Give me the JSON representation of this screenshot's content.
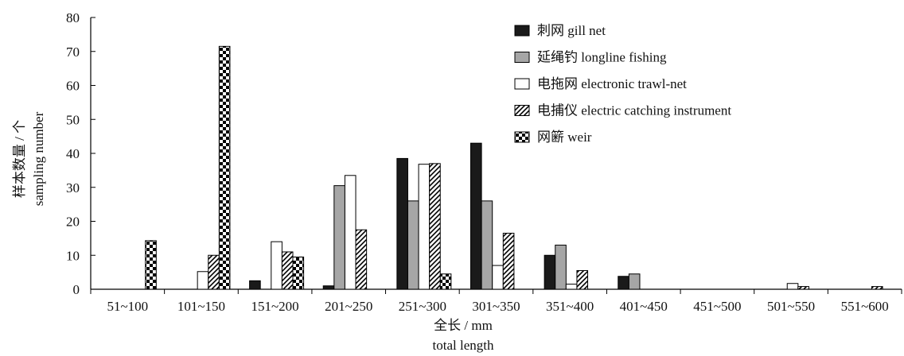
{
  "chart_data": {
    "type": "bar",
    "categories": [
      "51~100",
      "101~150",
      "151~200",
      "201~250",
      "251~300",
      "301~350",
      "351~400",
      "401~450",
      "451~500",
      "501~550",
      "551~600"
    ],
    "series": [
      {
        "name": "刺网 gill net",
        "pattern": "solid-black",
        "values": [
          0,
          0,
          2.5,
          1,
          38.5,
          43,
          10,
          3.8,
          0,
          0,
          0
        ]
      },
      {
        "name": "延绳钓 longline fishing",
        "pattern": "gray",
        "values": [
          0,
          0,
          0,
          30.5,
          26,
          26,
          13,
          4.5,
          0,
          0,
          0
        ]
      },
      {
        "name": "电拖网 electronic trawl-net",
        "pattern": "white",
        "values": [
          0,
          5.2,
          14,
          33.5,
          36.8,
          7,
          1.5,
          0,
          0,
          1.7,
          0
        ]
      },
      {
        "name": "电捕仪 electric catching instrument",
        "pattern": "diagonal-hatch",
        "values": [
          0,
          10,
          11,
          17.5,
          37,
          16.5,
          5.5,
          0,
          0,
          0.8,
          0.8
        ]
      },
      {
        "name": "网簖 weir",
        "pattern": "checker",
        "values": [
          14.3,
          71.5,
          9.5,
          0,
          4.5,
          0,
          0,
          0,
          0,
          0,
          0
        ]
      }
    ],
    "ylim": [
      0,
      80
    ],
    "yticks": [
      "0",
      "10",
      "20",
      "30",
      "40",
      "50",
      "60",
      "70",
      "80"
    ],
    "ylabel_cn": "样本数量 / 个",
    "ylabel_en": "sampling number",
    "xlabel_cn": "全长 / mm",
    "xlabel_en": "total length",
    "legend_position": "top-right",
    "grid": false
  }
}
